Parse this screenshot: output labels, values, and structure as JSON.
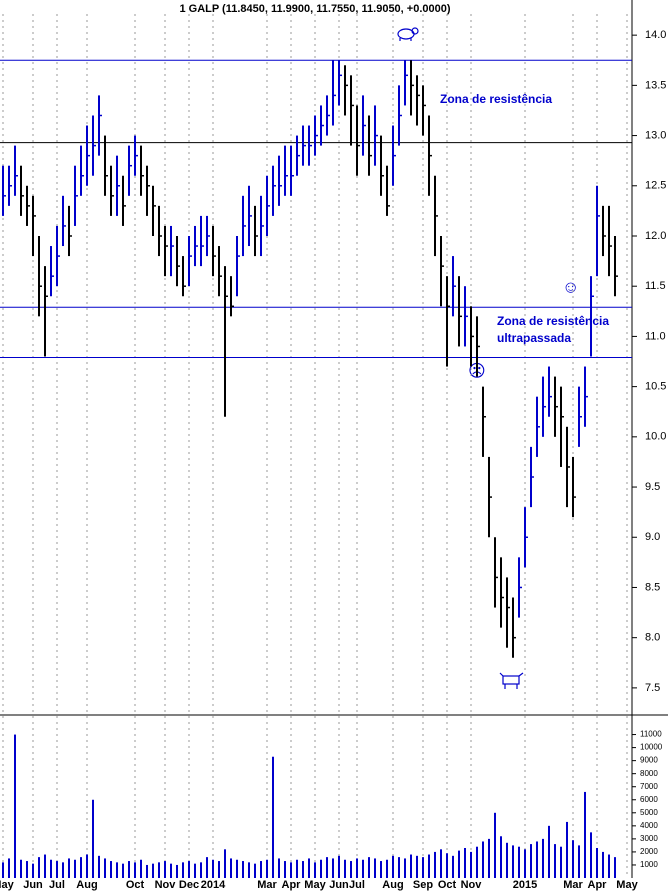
{
  "chart_data": [
    {
      "type": "ohlc",
      "title": "1 GALP (11.8450, 11.9900, 11.7550, 11.9050, +0.0000)",
      "annotations": [
        "Zona de resistência",
        "Zona de resistência",
        "ultrapassada",
        "☹",
        "☺"
      ],
      "up_color": "#0000cc",
      "down_color": "#000000",
      "hlines": [
        {
          "value": 13.75,
          "color": "#0000cc"
        },
        {
          "value": 12.93,
          "color": "#000000"
        },
        {
          "value": 11.29,
          "color": "#0000cc"
        },
        {
          "value": 10.79,
          "color": "#0000cc"
        }
      ],
      "ylim": [
        7.23,
        14.35
      ],
      "yticks": [
        7.5,
        {
          "value": 8,
          "label": "8.0"
        },
        8.5,
        {
          "value": 9,
          "label": "9.0"
        },
        9.5,
        {
          "value": 10,
          "label": "10.0"
        },
        10.5,
        {
          "value": 11,
          "label": "11.0"
        },
        11.5,
        {
          "value": 12,
          "label": "12.0"
        },
        12.5,
        {
          "value": 13,
          "label": "13.0"
        },
        13.5,
        {
          "value": 14,
          "label": "14.0"
        }
      ],
      "high": [
        12.7,
        12.7,
        12.9,
        12.7,
        12.5,
        12.4,
        12.0,
        11.7,
        11.9,
        12.1,
        12.4,
        12.3,
        12.7,
        12.9,
        13.1,
        13.2,
        13.4,
        13.0,
        12.7,
        12.8,
        12.6,
        12.9,
        13.0,
        12.9,
        12.7,
        12.5,
        12.3,
        12.1,
        12.1,
        12.0,
        11.8,
        12.0,
        12.1,
        12.2,
        12.2,
        12.1,
        11.9,
        11.7,
        11.6,
        12.0,
        12.4,
        12.5,
        12.3,
        12.4,
        12.6,
        12.7,
        12.8,
        12.9,
        12.9,
        13.0,
        13.1,
        13.1,
        13.2,
        13.3,
        13.4,
        13.75,
        13.75,
        13.7,
        13.6,
        13.3,
        13.4,
        13.2,
        13.3,
        13.0,
        12.7,
        13.1,
        13.5,
        13.75,
        13.75,
        13.6,
        13.5,
        13.2,
        12.6,
        12.0,
        11.6,
        11.8,
        11.6,
        11.5,
        11.3,
        11.2,
        10.5,
        9.8,
        9.0,
        8.8,
        8.6,
        8.4,
        8.8,
        9.3,
        9.9,
        10.4,
        10.6,
        10.7,
        10.6,
        10.5,
        10.1,
        9.8,
        10.5,
        10.7,
        11.6,
        12.5,
        12.3,
        12.3,
        12.0,
        null,
        null
      ],
      "low": [
        12.2,
        12.3,
        12.4,
        12.2,
        12.1,
        11.8,
        11.2,
        10.8,
        11.4,
        11.5,
        11.9,
        11.8,
        12.1,
        12.4,
        12.5,
        12.6,
        12.8,
        12.4,
        12.2,
        12.2,
        12.1,
        12.4,
        12.6,
        12.4,
        12.2,
        12.0,
        11.8,
        11.6,
        11.6,
        11.5,
        11.4,
        11.5,
        11.7,
        11.7,
        11.8,
        11.6,
        11.4,
        10.2,
        11.2,
        11.4,
        11.8,
        11.9,
        11.8,
        11.8,
        12.0,
        12.2,
        12.3,
        12.4,
        12.4,
        12.6,
        12.7,
        12.7,
        12.8,
        12.9,
        13.0,
        13.1,
        13.3,
        13.2,
        12.9,
        12.6,
        12.8,
        12.6,
        12.7,
        12.4,
        12.2,
        12.5,
        12.9,
        13.3,
        13.2,
        13.1,
        13.0,
        12.4,
        11.8,
        11.3,
        10.7,
        11.2,
        10.9,
        10.9,
        10.7,
        10.6,
        9.8,
        9.0,
        8.3,
        8.1,
        7.9,
        7.8,
        8.2,
        8.7,
        9.3,
        9.8,
        10.0,
        10.2,
        10.0,
        9.7,
        9.3,
        9.2,
        9.9,
        10.1,
        10.8,
        11.6,
        11.8,
        11.6,
        11.4,
        null,
        null
      ],
      "close": [
        12.4,
        12.5,
        12.6,
        12.4,
        12.3,
        12.2,
        11.5,
        11.4,
        11.6,
        11.8,
        12.1,
        12.0,
        12.4,
        12.6,
        12.8,
        12.9,
        13.2,
        12.6,
        12.4,
        12.5,
        12.3,
        12.7,
        12.8,
        12.6,
        12.5,
        12.3,
        12.0,
        11.9,
        11.9,
        11.7,
        11.5,
        11.8,
        11.9,
        11.9,
        12.0,
        11.8,
        11.6,
        11.4,
        11.3,
        11.8,
        12.1,
        12.2,
        12.0,
        12.1,
        12.3,
        12.5,
        12.5,
        12.6,
        12.6,
        12.8,
        12.9,
        12.9,
        13.0,
        13.1,
        13.2,
        13.4,
        13.6,
        13.5,
        13.3,
        12.9,
        13.1,
        12.8,
        13.0,
        12.6,
        12.3,
        12.8,
        13.2,
        13.6,
        13.5,
        13.4,
        13.3,
        12.8,
        12.2,
        11.7,
        11.3,
        11.5,
        11.2,
        11.2,
        11.0,
        10.9,
        10.2,
        9.4,
        8.6,
        8.4,
        8.3,
        8.0,
        8.5,
        9.0,
        9.6,
        10.1,
        10.3,
        10.4,
        10.3,
        10.2,
        9.7,
        9.4,
        10.2,
        10.4,
        11.4,
        12.2,
        12.0,
        11.9,
        11.6,
        null,
        null
      ]
    },
    {
      "type": "bar",
      "color": "#0000cc",
      "grid": true,
      "ylim": [
        0,
        12500
      ],
      "yticks": [
        1000,
        2000,
        3000,
        4000,
        5000,
        6000,
        7000,
        8000,
        9000,
        10000,
        11000
      ],
      "categories": [
        "May",
        null,
        null,
        null,
        null,
        "Jun",
        null,
        null,
        null,
        "Jul",
        null,
        null,
        null,
        null,
        "Aug",
        null,
        null,
        null,
        null,
        null,
        null,
        null,
        "Oct",
        null,
        null,
        null,
        null,
        "Nov",
        null,
        null,
        null,
        "Dec",
        null,
        null,
        null,
        "2014",
        null,
        null,
        null,
        null,
        null,
        null,
        null,
        null,
        "Mar",
        null,
        null,
        null,
        "Apr",
        null,
        null,
        null,
        "May",
        null,
        null,
        null,
        "Jun",
        null,
        null,
        "Jul",
        null,
        null,
        null,
        null,
        null,
        "Aug",
        null,
        null,
        null,
        null,
        "Sep",
        null,
        null,
        null,
        "Oct",
        null,
        null,
        null,
        "Nov",
        null,
        null,
        null,
        null,
        null,
        null,
        null,
        null,
        "2015",
        null,
        null,
        null,
        null,
        null,
        null,
        null,
        "Mar",
        null,
        null,
        null,
        "Apr",
        null,
        null,
        null,
        null,
        "May"
      ],
      "values": [
        1200,
        1500,
        11000,
        1400,
        1300,
        1100,
        1600,
        1800,
        1400,
        1300,
        1200,
        1500,
        1400,
        1600,
        1800,
        6000,
        1700,
        1500,
        1300,
        1200,
        1100,
        1300,
        1200,
        1400,
        1000,
        1100,
        1200,
        1300,
        1100,
        1000,
        1200,
        1300,
        1100,
        1200,
        1600,
        1400,
        1300,
        2200,
        1500,
        1400,
        1300,
        1200,
        1100,
        1300,
        1400,
        9300,
        1500,
        1300,
        1200,
        1400,
        1300,
        1500,
        1200,
        1400,
        1600,
        1500,
        1700,
        1400,
        1300,
        1500,
        1400,
        1600,
        1500,
        1300,
        1400,
        1700,
        1600,
        1500,
        1800,
        1700,
        1600,
        1800,
        2000,
        2200,
        1900,
        1700,
        2100,
        2300,
        2000,
        2400,
        2800,
        3000,
        5000,
        3200,
        2700,
        2500,
        2400,
        2200,
        2600,
        2800,
        3000,
        4000,
        2600,
        2400,
        4300,
        2900,
        2500,
        6600,
        3500,
        2300,
        2000,
        1800,
        1600,
        null,
        null
      ]
    }
  ]
}
